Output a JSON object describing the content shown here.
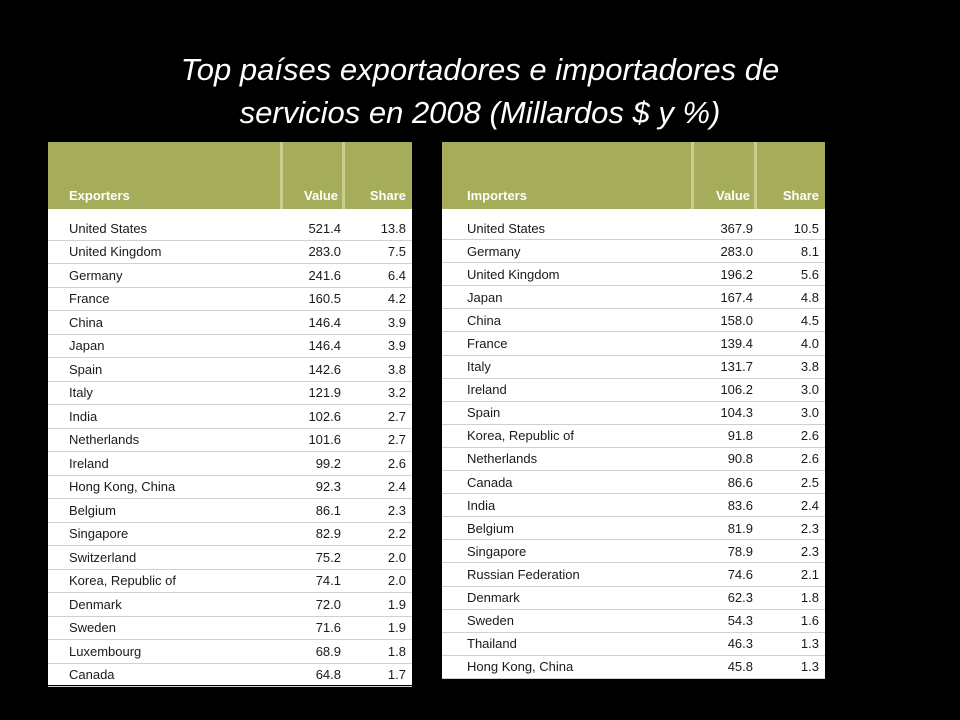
{
  "slide": {
    "title_line1": "Top países exportadores e importadores de",
    "title_line2": "servicios en 2008 (Millardos $ y %)"
  },
  "exporters": {
    "headers": {
      "name": "Exporters",
      "value": "Value",
      "share": "Share"
    },
    "rows": [
      {
        "country": "United States",
        "value": "521.4",
        "share": "13.8"
      },
      {
        "country": "United Kingdom",
        "value": "283.0",
        "share": "7.5"
      },
      {
        "country": "Germany",
        "value": "241.6",
        "share": "6.4"
      },
      {
        "country": "France",
        "value": "160.5",
        "share": "4.2"
      },
      {
        "country": "China",
        "value": "146.4",
        "share": "3.9"
      },
      {
        "country": "Japan",
        "value": "146.4",
        "share": "3.9"
      },
      {
        "country": "Spain",
        "value": "142.6",
        "share": "3.8"
      },
      {
        "country": "Italy",
        "value": "121.9",
        "share": "3.2"
      },
      {
        "country": "India",
        "value": "102.6",
        "share": "2.7"
      },
      {
        "country": "Netherlands",
        "value": "101.6",
        "share": "2.7"
      },
      {
        "country": "Ireland",
        "value": "99.2",
        "share": "2.6"
      },
      {
        "country": "Hong Kong, China",
        "value": "92.3",
        "share": "2.4"
      },
      {
        "country": "Belgium",
        "value": "86.1",
        "share": "2.3"
      },
      {
        "country": "Singapore",
        "value": "82.9",
        "share": "2.2"
      },
      {
        "country": "Switzerland",
        "value": "75.2",
        "share": "2.0"
      },
      {
        "country": "Korea, Republic of",
        "value": "74.1",
        "share": "2.0"
      },
      {
        "country": "Denmark",
        "value": "72.0",
        "share": "1.9"
      },
      {
        "country": "Sweden",
        "value": "71.6",
        "share": "1.9"
      },
      {
        "country": "Luxembourg",
        "value": "68.9",
        "share": "1.8"
      },
      {
        "country": "Canada",
        "value": "64.8",
        "share": "1.7"
      }
    ]
  },
  "importers": {
    "headers": {
      "name": "Importers",
      "value": "Value",
      "share": "Share"
    },
    "rows": [
      {
        "country": "United States",
        "value": "367.9",
        "share": "10.5"
      },
      {
        "country": "Germany",
        "value": "283.0",
        "share": "8.1"
      },
      {
        "country": "United Kingdom",
        "value": "196.2",
        "share": "5.6"
      },
      {
        "country": "Japan",
        "value": "167.4",
        "share": "4.8"
      },
      {
        "country": "China",
        "value": "158.0",
        "share": "4.5"
      },
      {
        "country": "France",
        "value": "139.4",
        "share": "4.0"
      },
      {
        "country": "Italy",
        "value": "131.7",
        "share": "3.8"
      },
      {
        "country": "Ireland",
        "value": "106.2",
        "share": "3.0"
      },
      {
        "country": "Spain",
        "value": "104.3",
        "share": "3.0"
      },
      {
        "country": "Korea, Republic of",
        "value": "91.8",
        "share": "2.6"
      },
      {
        "country": "Netherlands",
        "value": "90.8",
        "share": "2.6"
      },
      {
        "country": "Canada",
        "value": "86.6",
        "share": "2.5"
      },
      {
        "country": "India",
        "value": "83.6",
        "share": "2.4"
      },
      {
        "country": "Belgium",
        "value": "81.9",
        "share": "2.3"
      },
      {
        "country": "Singapore",
        "value": "78.9",
        "share": "2.3"
      },
      {
        "country": "Russian Federation",
        "value": "74.6",
        "share": "2.1"
      },
      {
        "country": "Denmark",
        "value": "62.3",
        "share": "1.8"
      },
      {
        "country": "Sweden",
        "value": "54.3",
        "share": "1.6"
      },
      {
        "country": "Thailand",
        "value": "46.3",
        "share": "1.3"
      },
      {
        "country": "Hong Kong, China",
        "value": "45.8",
        "share": "1.3"
      }
    ]
  },
  "colors": {
    "header_green": "#a6ad5a",
    "background": "#000000",
    "title_text": "#ffffff"
  }
}
